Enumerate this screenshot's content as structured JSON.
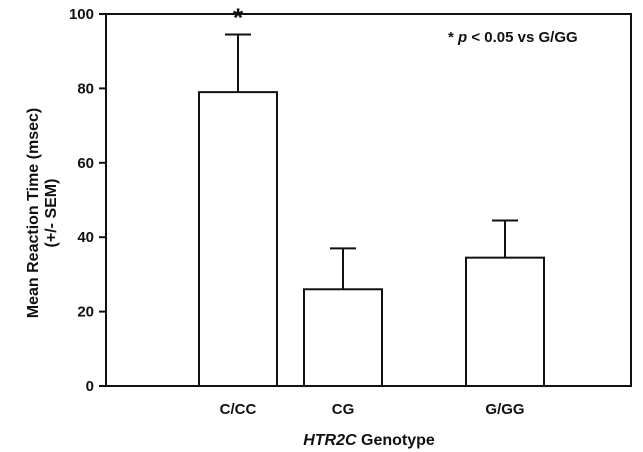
{
  "chart_data": {
    "type": "bar",
    "categories": [
      "C/CC",
      "CG",
      "G/GG"
    ],
    "series": [
      {
        "values": [
          79,
          26,
          34.5
        ],
        "error": [
          15.5,
          11,
          10
        ]
      }
    ],
    "ylim": [
      0,
      100
    ],
    "yticks": [
      0,
      20,
      40,
      60,
      80,
      100
    ],
    "ylabel_lines": [
      "Mean Reaction Time (msec)",
      "(+/- SEM)"
    ],
    "xlabel_italic": "HTR2C",
    "xlabel_rest": " Genotype",
    "significance_markers": [
      "*",
      "",
      ""
    ],
    "annotation": {
      "star": "*",
      "p_italic": "p",
      "text": " < 0.05 vs G/GG"
    },
    "bar_fill": "#ffffff",
    "bar_stroke": "#111111",
    "grid": false
  }
}
